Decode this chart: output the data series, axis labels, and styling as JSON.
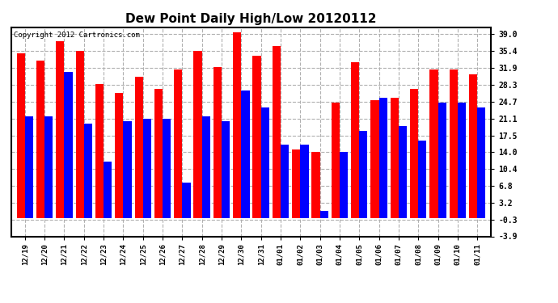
{
  "title": "Dew Point Daily High/Low 20120112",
  "copyright": "Copyright 2012 Cartronics.com",
  "categories": [
    "12/19",
    "12/20",
    "12/21",
    "12/22",
    "12/23",
    "12/24",
    "12/25",
    "12/26",
    "12/27",
    "12/28",
    "12/29",
    "12/30",
    "12/31",
    "01/01",
    "01/02",
    "01/03",
    "01/04",
    "01/05",
    "01/06",
    "01/07",
    "01/08",
    "01/09",
    "01/10",
    "01/11"
  ],
  "high_values": [
    35.0,
    33.5,
    37.5,
    35.5,
    28.5,
    26.5,
    30.0,
    27.5,
    31.5,
    35.5,
    32.0,
    39.5,
    34.5,
    36.5,
    14.5,
    14.0,
    24.5,
    33.0,
    25.0,
    25.5,
    27.5,
    31.5,
    31.5,
    30.5
  ],
  "low_values": [
    21.5,
    21.5,
    31.0,
    20.0,
    12.0,
    20.5,
    21.0,
    21.0,
    7.5,
    21.5,
    20.5,
    27.0,
    23.5,
    15.5,
    15.5,
    1.5,
    14.0,
    18.5,
    25.5,
    19.5,
    16.5,
    24.5,
    24.5,
    23.5
  ],
  "high_color": "#ff0000",
  "low_color": "#0000ff",
  "yticks": [
    39.0,
    35.4,
    31.9,
    28.3,
    24.7,
    21.1,
    17.5,
    14.0,
    10.4,
    6.8,
    3.2,
    -0.3,
    -3.9
  ],
  "ymin": -3.9,
  "ymax": 40.5,
  "bg_color": "#ffffff",
  "plot_bg_color": "#ffffff",
  "grid_color": "#b0b0b0",
  "bar_width": 0.42,
  "figwidth": 6.9,
  "figheight": 3.75,
  "dpi": 100
}
